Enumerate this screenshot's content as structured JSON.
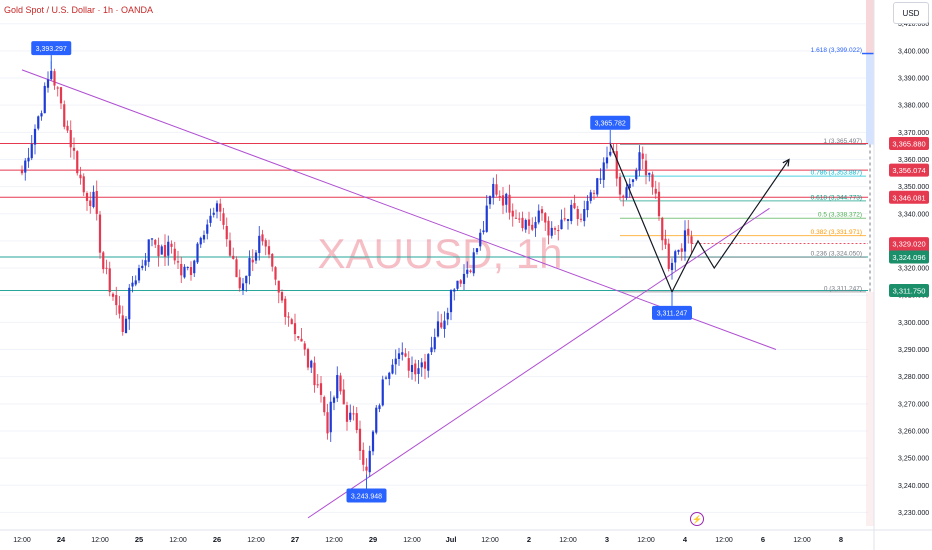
{
  "header": {
    "title": "Gold Spot / U.S. Dollar · 1h · OANDA",
    "currency": "USD"
  },
  "watermark": "XAUUSD, 1h",
  "colors": {
    "bull": "#26a69a",
    "bull_body": "#1e3bd6",
    "bear": "#e53950",
    "resistance": "#e53950",
    "support": "#26a69a",
    "trendline": "#b04fd2",
    "projection": "#131722",
    "label_bg": "#2962ff"
  },
  "chart_data": {
    "type": "candlestick",
    "timeframe": "1h",
    "y_range": [
      3225,
      3418
    ],
    "y_ticks": [
      3230,
      3240,
      3250,
      3260,
      3270,
      3280,
      3290,
      3300,
      3310,
      3320,
      3330,
      3340,
      3350,
      3360,
      3370,
      3380,
      3390,
      3400,
      3410
    ],
    "y_tick_labels": [
      "3,230.000",
      "3,240.000",
      "3,250.000",
      "3,260.000",
      "3,270.000",
      "3,280.000",
      "3,290.000",
      "3,300.000",
      "3,310.000",
      "3,320.000",
      "3,330.000",
      "3,340.000",
      "3,350.000",
      "3,360.000",
      "3,370.000",
      "3,380.000",
      "3,390.000",
      "3,400.000",
      "3,410.000"
    ],
    "x_ticks": [
      "12:00",
      "24",
      "12:00",
      "25",
      "12:00",
      "26",
      "12:00",
      "27",
      "12:00",
      "29",
      "12:00",
      "Jul",
      "12:00",
      "2",
      "12:00",
      "3",
      "12:00",
      "4",
      "12:00",
      "6",
      "12:00",
      "8"
    ],
    "x_tick_index": [
      0,
      12,
      24,
      36,
      48,
      60,
      72,
      84,
      96,
      108,
      120,
      132,
      144,
      156,
      168,
      180,
      192,
      204,
      216,
      228,
      240,
      252
    ],
    "path": [
      [
        0,
        3355
      ],
      [
        6,
        3380
      ],
      [
        9,
        3393.297
      ],
      [
        13,
        3375
      ],
      [
        16,
        3362
      ],
      [
        19,
        3348
      ],
      [
        22,
        3345
      ],
      [
        25,
        3320
      ],
      [
        28,
        3310
      ],
      [
        31,
        3298
      ],
      [
        34,
        3315
      ],
      [
        37,
        3322
      ],
      [
        40,
        3332
      ],
      [
        43,
        3325
      ],
      [
        46,
        3328
      ],
      [
        49,
        3318
      ],
      [
        52,
        3320
      ],
      [
        55,
        3334
      ],
      [
        58,
        3338
      ],
      [
        61,
        3342
      ],
      [
        64,
        3325
      ],
      [
        67,
        3313
      ],
      [
        70,
        3322
      ],
      [
        73,
        3330
      ],
      [
        76,
        3322
      ],
      [
        79,
        3310
      ],
      [
        82,
        3303
      ],
      [
        85,
        3295
      ],
      [
        88,
        3285
      ],
      [
        91,
        3278
      ],
      [
        94,
        3262
      ],
      [
        97,
        3278
      ],
      [
        100,
        3266
      ],
      [
        103,
        3262
      ],
      [
        106,
        3243.948
      ],
      [
        109,
        3266
      ],
      [
        112,
        3282
      ],
      [
        115,
        3290
      ],
      [
        118,
        3285
      ],
      [
        121,
        3284
      ],
      [
        124,
        3286
      ],
      [
        127,
        3296
      ],
      [
        130,
        3303
      ],
      [
        133,
        3315
      ],
      [
        136,
        3318
      ],
      [
        139,
        3324
      ],
      [
        142,
        3335
      ],
      [
        145,
        3350
      ],
      [
        148,
        3346
      ],
      [
        151,
        3342
      ],
      [
        154,
        3338
      ],
      [
        157,
        3335
      ],
      [
        160,
        3340
      ],
      [
        163,
        3332
      ],
      [
        166,
        3335
      ],
      [
        169,
        3340
      ],
      [
        172,
        3338
      ],
      [
        175,
        3345
      ],
      [
        178,
        3352
      ],
      [
        181,
        3365.782
      ],
      [
        184,
        3346
      ],
      [
        187,
        3349
      ],
      [
        190,
        3360
      ],
      [
        193,
        3356
      ],
      [
        196,
        3338
      ],
      [
        199,
        3322
      ],
      [
        202,
        3328
      ],
      [
        205,
        3332
      ],
      [
        206,
        3329.02
      ]
    ],
    "markers": [
      {
        "label": "3,393.297",
        "index": 9,
        "price": 3393.297
      },
      {
        "label": "3,243.948",
        "index": 106,
        "price": 3243.948
      },
      {
        "label": "3,365.782",
        "index": 181,
        "price": 3365.782
      },
      {
        "label": "3,311.247",
        "index": 200,
        "price": 3311.247
      }
    ],
    "horizontal_lines": [
      {
        "price": 3365.88,
        "color": "resistance"
      },
      {
        "price": 3356.074,
        "color": "resistance"
      },
      {
        "price": 3346.081,
        "color": "resistance"
      },
      {
        "price": 3324.096,
        "color": "support"
      },
      {
        "price": 3311.75,
        "color": "support"
      }
    ],
    "fibonacci": [
      {
        "level": "1",
        "price": 3365.497,
        "label": "1 (3,365.497)",
        "color": "#787b86"
      },
      {
        "level": "0.786",
        "price": 3353.887,
        "label": "0.786 (3,353.887)",
        "color": "#00bcd4"
      },
      {
        "level": "0.618",
        "price": 3344.773,
        "label": "0.618 (3,344.773)",
        "color": "#089981"
      },
      {
        "level": "0.5",
        "price": 3338.372,
        "label": "0.5 (3,338.372)",
        "color": "#4caf50"
      },
      {
        "level": "0.382",
        "price": 3331.971,
        "label": "0.382 (3,331.971)",
        "color": "#ff9800"
      },
      {
        "level": "0.236",
        "price": 3324.05,
        "label": "0.236 (3,324.050)",
        "color": "#787b86"
      },
      {
        "level": "0",
        "price": 3311.247,
        "label": "0 (3,311.247)",
        "color": "#787b86"
      },
      {
        "level": "1.618",
        "price": 3399.022,
        "label": "1.618 (3,399.022)",
        "color": "#2962ff"
      }
    ],
    "trendlines": [
      {
        "from": [
          0,
          3393
        ],
        "to": [
          232,
          3290
        ]
      },
      {
        "from": [
          88,
          3228
        ],
        "to": [
          230,
          3342
        ]
      }
    ],
    "projection_path": [
      [
        181,
        3365.782
      ],
      [
        200,
        3311.247
      ],
      [
        208,
        3330
      ],
      [
        213,
        3320
      ],
      [
        236,
        3360
      ]
    ],
    "price_tags": [
      {
        "text": "3,365.880",
        "price": 3365.88,
        "bg": "#e53950",
        "fg": "#ffffff"
      },
      {
        "text": "3,356.074",
        "price": 3356.074,
        "bg": "#e53950",
        "fg": "#ffffff"
      },
      {
        "text": "3,346.081",
        "price": 3346.081,
        "bg": "#e53950",
        "fg": "#ffffff"
      },
      {
        "text": "3,329.020",
        "price": 3329.02,
        "bg": "#e53950",
        "fg": "#ffffff",
        "sub": "48:34"
      },
      {
        "text": "3,324.096",
        "price": 3324.096,
        "bg": "#1b8f6a",
        "fg": "#ffffff"
      },
      {
        "text": "3,311.750",
        "price": 3311.75,
        "bg": "#1b8f6a",
        "fg": "#ffffff"
      }
    ]
  }
}
